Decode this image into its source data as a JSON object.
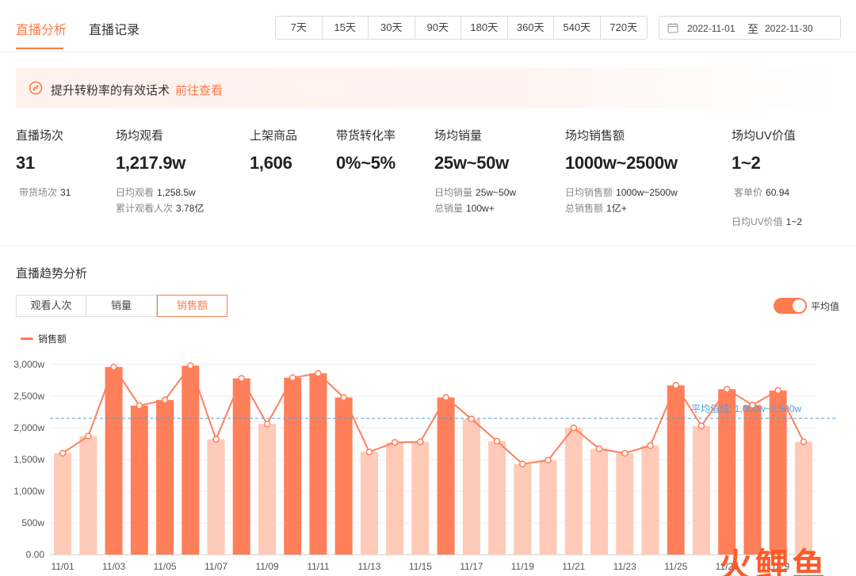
{
  "header": {
    "tabs": [
      {
        "label": "直播分析",
        "active": true
      },
      {
        "label": "直播记录",
        "active": false
      }
    ],
    "ranges": [
      "7天",
      "15天",
      "30天",
      "90天",
      "180天",
      "360天",
      "540天",
      "720天"
    ],
    "date_start": "2022-11-01",
    "date_sep": "至",
    "date_end": "2022-11-30"
  },
  "tip": {
    "icon": "compass-icon",
    "text": "提升转粉率的有效话术",
    "link": "前往查看"
  },
  "stats": [
    {
      "label": "直播场次",
      "value": "31",
      "subs": [
        {
          "k": "带货场次",
          "v": "31"
        }
      ]
    },
    {
      "label": "场均观看",
      "value": "1,217.9w",
      "subs": [
        {
          "k": "日均观看",
          "v": "1,258.5w"
        },
        {
          "k": "累计观看人次",
          "v": "3.78亿"
        }
      ]
    },
    {
      "label": "上架商品",
      "value": "1,606",
      "subs": []
    },
    {
      "label": "带货转化率",
      "value": "0%~5%",
      "subs": []
    },
    {
      "label": "场均销量",
      "value": "25w~50w",
      "subs": [
        {
          "k": "日均销量",
          "v": "25w~50w"
        },
        {
          "k": "总销量",
          "v": "100w+"
        }
      ]
    },
    {
      "label": "场均销售额",
      "value": "1000w~2500w",
      "subs": [
        {
          "k": "日均销售额",
          "v": "1000w~2500w"
        },
        {
          "k": "总销售额",
          "v": "1亿+"
        }
      ]
    },
    {
      "label": "场均UV价值",
      "value": "1~2",
      "subs": [
        {
          "k": "客单价",
          "v": "60.94"
        },
        {
          "k": "日均UV价值",
          "v": "1~2"
        }
      ]
    }
  ],
  "trend": {
    "title": "直播趋势分析",
    "metric_tabs": [
      {
        "label": "观看人次",
        "active": false
      },
      {
        "label": "销量",
        "active": false
      },
      {
        "label": "销售额",
        "active": true
      }
    ],
    "toggle_label": "平均值",
    "toggle_on": true,
    "legend": "销售额"
  },
  "chart_data": {
    "type": "bar",
    "series_name": "销售额",
    "x": [
      "11/01",
      "11/02",
      "11/03",
      "11/04",
      "11/05",
      "11/06",
      "11/07",
      "11/08",
      "11/09",
      "11/10",
      "11/11",
      "11/12",
      "11/13",
      "11/14",
      "11/15",
      "11/16",
      "11/17",
      "11/18",
      "11/19",
      "11/20",
      "11/21",
      "11/22",
      "11/23",
      "11/24",
      "11/25",
      "11/26",
      "11/27",
      "11/28",
      "11/29",
      "11/30"
    ],
    "xtick_labels": [
      "11/01",
      "11/03",
      "11/05",
      "11/07",
      "11/09",
      "11/11",
      "11/13",
      "11/15",
      "11/17",
      "11/19",
      "11/21",
      "11/23",
      "11/25",
      "11/27",
      "11/29"
    ],
    "values": [
      1600,
      1870,
      2960,
      2350,
      2440,
      2980,
      1820,
      2780,
      2060,
      2790,
      2860,
      2480,
      1620,
      1770,
      1780,
      2480,
      2140,
      1790,
      1430,
      1490,
      2000,
      1670,
      1600,
      1720,
      2670,
      2030,
      2610,
      2360,
      2590,
      1780
    ],
    "highlight": [
      false,
      false,
      true,
      true,
      true,
      true,
      false,
      true,
      false,
      true,
      true,
      true,
      false,
      false,
      false,
      true,
      false,
      false,
      false,
      false,
      false,
      false,
      false,
      false,
      true,
      false,
      true,
      true,
      true,
      false
    ],
    "ylim": [
      0,
      3000
    ],
    "yticks": [
      "0.00",
      "500w",
      "1,000w",
      "1,500w",
      "2,000w",
      "2,500w",
      "3,000w"
    ],
    "average_value": 2150,
    "average_label": "平均值线: 1,000w~2,500w",
    "colors": {
      "highlight": "#ff7f5b",
      "normal": "#ffcab8",
      "line": "#ff7f5b",
      "average": "#4a9fe0"
    },
    "grid": true
  },
  "watermark": "火鲤鱼"
}
